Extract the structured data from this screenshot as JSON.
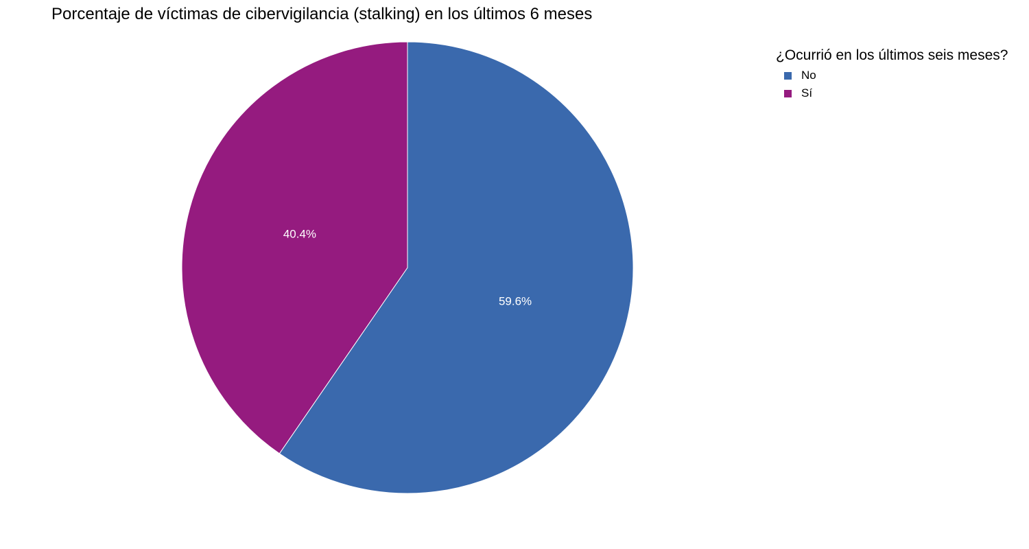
{
  "chart_data": {
    "type": "pie",
    "title": "Porcentaje de víctimas de cibervigilancia (stalking) en los últimos 6 meses",
    "legend_title": "¿Ocurrió en los últimos seis meses?",
    "legend_placement": "top-right",
    "direction": "clockwise",
    "start": "top",
    "slices": [
      {
        "label": "No",
        "value": 59.6,
        "display": "59.6%",
        "color": "#3a69ad"
      },
      {
        "label": "Sí",
        "value": 40.4,
        "display": "40.4%",
        "color": "#951b7f"
      }
    ]
  }
}
